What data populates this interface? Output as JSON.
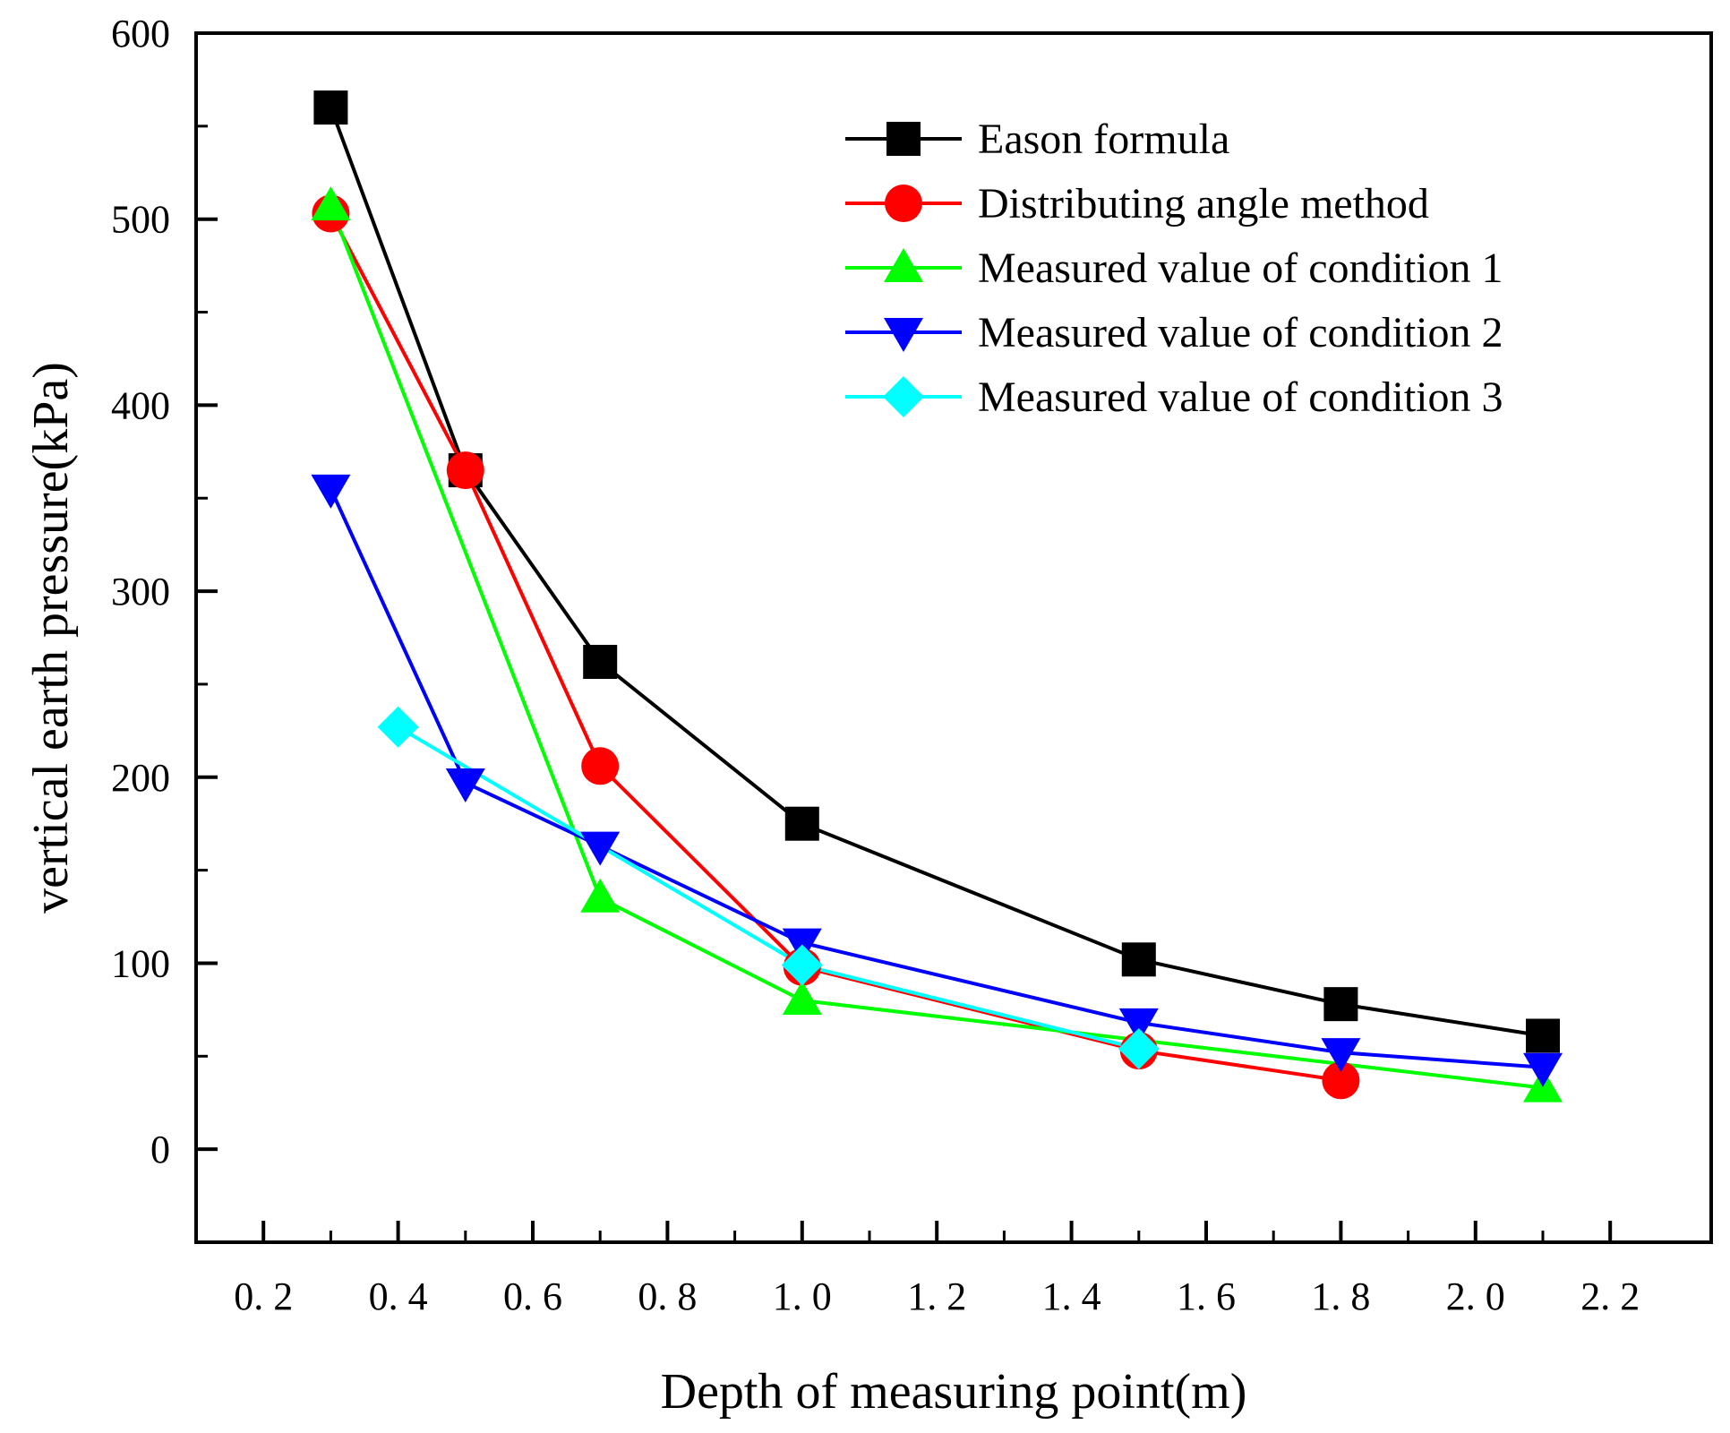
{
  "chart_data": {
    "type": "line",
    "title": "",
    "xlabel": "Depth of measuring point(m)",
    "ylabel": "vertical earth pressure(kPa)",
    "xlim": [
      0.1,
      2.35
    ],
    "ylim": [
      -50,
      600
    ],
    "xticks": [
      0.2,
      0.4,
      0.6,
      0.8,
      1.0,
      1.2,
      1.4,
      1.6,
      1.8,
      2.0,
      2.2
    ],
    "xtick_labels": [
      "0. 2",
      "0. 4",
      "0. 6",
      "0. 8",
      "1. 0",
      "1. 2",
      "1. 4",
      "1. 6",
      "1. 8",
      "2. 0",
      "2. 2"
    ],
    "yticks": [
      0,
      100,
      200,
      300,
      400,
      500,
      600
    ],
    "ytick_labels": [
      "0",
      "100",
      "200",
      "300",
      "400",
      "500",
      "600"
    ],
    "legend_position": "top-right",
    "series": [
      {
        "name": "Eason formula",
        "color": "#000000",
        "marker": "square",
        "x": [
          0.3,
          0.5,
          0.7,
          1.0,
          1.5,
          1.8,
          2.1
        ],
        "y": [
          560,
          365,
          262,
          175,
          102,
          78,
          61
        ]
      },
      {
        "name": "Distributing angle method",
        "color": "#ff0000",
        "marker": "circle",
        "x": [
          0.3,
          0.5,
          0.7,
          1.0,
          1.5,
          1.8
        ],
        "y": [
          503,
          365,
          206,
          98,
          53,
          37
        ]
      },
      {
        "name": "Measured value of condition 1",
        "color": "#00ff00",
        "marker": "triangle-up",
        "x": [
          0.3,
          0.7,
          1.0,
          2.1
        ],
        "y": [
          507,
          135,
          80,
          33
        ]
      },
      {
        "name": "Measured value of condition 2",
        "color": "#0000ff",
        "marker": "triangle-down",
        "x": [
          0.3,
          0.5,
          0.7,
          1.0,
          1.5,
          1.8,
          2.1
        ],
        "y": [
          355,
          197,
          163,
          111,
          68,
          52,
          44
        ]
      },
      {
        "name": "Measured value of condition 3",
        "color": "#00ffff",
        "marker": "diamond",
        "x": [
          0.4,
          1.0,
          1.5
        ],
        "y": [
          227,
          99,
          54
        ]
      }
    ]
  }
}
